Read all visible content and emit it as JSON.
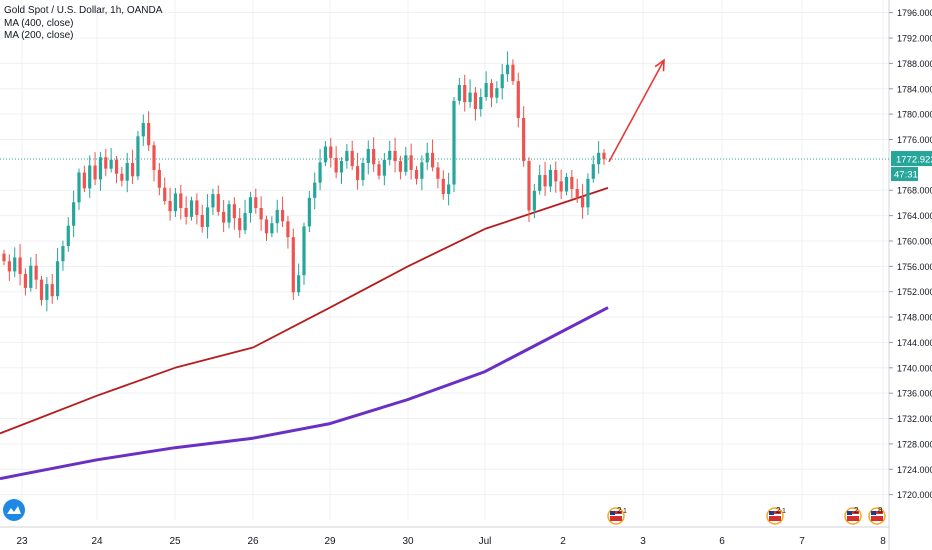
{
  "chart_data": {
    "type": "candlestick",
    "title": "Gold Spot / U.S. Dollar, 1h, OANDA",
    "indicators": [
      {
        "label": "MA (400, close)",
        "color": "#b71c1c"
      },
      {
        "label": "MA (200, close)",
        "color": "#6a2fc4"
      }
    ],
    "ylim": [
      1716,
      1798
    ],
    "y_ticks": [
      "1796.000",
      "1792.000",
      "1788.000",
      "1784.000",
      "1780.000",
      "1776.000",
      "1768.000",
      "1764.000",
      "1760.000",
      "1756.000",
      "1752.000",
      "1748.000",
      "1744.000",
      "1740.000",
      "1736.000",
      "1732.000",
      "1728.000",
      "1724.000",
      "1720.000"
    ],
    "x_ticks": [
      "23",
      "24",
      "25",
      "26",
      "29",
      "30",
      "Jul",
      "2",
      "3",
      "6",
      "7",
      "8"
    ],
    "last_price": "1772.922",
    "countdown": "47:31",
    "last_price_color": "#26a69a",
    "up_color": "#26a69a",
    "down_color": "#ef5350",
    "candle_closes": [
      1756.8,
      1755.2,
      1757.4,
      1754.8,
      1752.6,
      1756.1,
      1753.9,
      1750.7,
      1753.2,
      1751.3,
      1756.8,
      1759.2,
      1762.4,
      1766.1,
      1770.8,
      1768.3,
      1771.9,
      1769.7,
      1773.2,
      1771.4,
      1772.8,
      1770.6,
      1769.5,
      1772.3,
      1770.2,
      1776.5,
      1778.6,
      1775.1,
      1771.2,
      1768.4,
      1766.3,
      1764.7,
      1767.5,
      1765.2,
      1763.8,
      1766.4,
      1764.1,
      1762.2,
      1765.3,
      1767.4,
      1764.6,
      1762.9,
      1765.8,
      1763.6,
      1761.7,
      1764.4,
      1766.9,
      1765.2,
      1763.4,
      1761.2,
      1762.8,
      1764.9,
      1763.1,
      1760.6,
      1751.9,
      1754.6,
      1762.3,
      1766.8,
      1769.2,
      1772.4,
      1774.9,
      1773.1,
      1770.8,
      1772.6,
      1774.2,
      1771.8,
      1769.6,
      1772.3,
      1774.5,
      1772.1,
      1770.3,
      1772.8,
      1774.2,
      1772.6,
      1770.9,
      1773.5,
      1771.2,
      1769.8,
      1772.4,
      1773.9,
      1771.6,
      1769.8,
      1767.4,
      1768.9,
      1782.1,
      1784.6,
      1781.9,
      1783.4,
      1780.8,
      1782.7,
      1784.9,
      1782.6,
      1784.1,
      1786.3,
      1787.8,
      1785.2,
      1779.4,
      1772.6,
      1764.8,
      1767.9,
      1770.4,
      1768.6,
      1771.2,
      1769.4,
      1767.8,
      1770.1,
      1768.2,
      1766.9,
      1765.3,
      1769.8,
      1772.1,
      1773.9,
      1772.9
    ],
    "moving_averages": [
      {
        "name": "MA (400, close)",
        "color": "#b71c1c",
        "x_at_ticks": [
          "23",
          "24",
          "25",
          "26",
          "29",
          "30",
          "Jul",
          "2"
        ],
        "values": [
          1731.0,
          1735.6,
          1740.0,
          1743.2,
          1749.5,
          1756.0,
          1761.9,
          1766.0
        ]
      },
      {
        "name": "MA (200, close)",
        "color": "#6a2fc4",
        "x_at_ticks": [
          "23",
          "24",
          "25",
          "26",
          "29",
          "30",
          "Jul",
          "2"
        ],
        "values": [
          1723.2,
          1725.5,
          1727.4,
          1728.9,
          1731.2,
          1735.0,
          1739.4,
          1745.8
        ]
      }
    ],
    "projection_arrow_color": "#e53935",
    "projection": {
      "from": 1772.5,
      "to": 1788.5
    },
    "event_badges": [
      {
        "label": "2",
        "sub": "1",
        "position": "near 3"
      },
      {
        "label": "2",
        "sub": "1",
        "position": "near 7"
      },
      {
        "label": "2",
        "position": "near 8"
      },
      {
        "label": "8",
        "position": "at 8"
      }
    ],
    "grid": true,
    "legend": "top-left"
  }
}
